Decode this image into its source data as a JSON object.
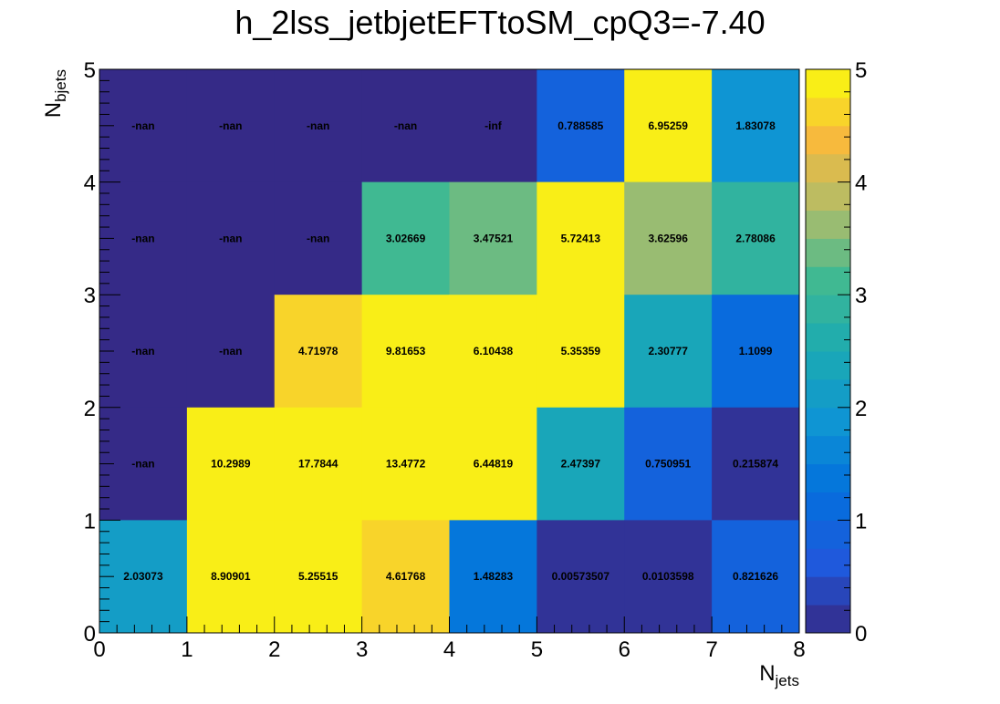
{
  "chart_data": {
    "type": "heatmap",
    "title": "h_2lss_jetbjetEFTtoSM_cpQ3=-7.40",
    "xlabel": "N",
    "xlabel_sub": "jets",
    "ylabel": "N",
    "ylabel_sub": "bjets",
    "xlim": [
      0,
      8
    ],
    "ylim": [
      0,
      5
    ],
    "zlim": [
      0,
      5
    ],
    "x_ticks": [
      "0",
      "1",
      "2",
      "3",
      "4",
      "5",
      "6",
      "7",
      "8"
    ],
    "y_ticks": [
      "0",
      "1",
      "2",
      "3",
      "4",
      "5"
    ],
    "z_ticks": [
      "0",
      "1",
      "2",
      "3",
      "4",
      "5"
    ],
    "colorbar_levels": 20,
    "underflow_color": "#352a87",
    "row_order": "top (y 4-5) to bottom (y 0-1)",
    "cells_text": [
      [
        "-nan",
        "-nan",
        "-nan",
        "-nan",
        "-inf",
        "0.788585",
        "6.95259",
        "1.83078"
      ],
      [
        "-nan",
        "-nan",
        "-nan",
        "3.02669",
        "3.47521",
        "5.72413",
        "3.62596",
        "2.78086"
      ],
      [
        "-nan",
        "-nan",
        "4.71978",
        "9.81653",
        "6.10438",
        "5.35359",
        "2.30777",
        "1.1099"
      ],
      [
        "-nan",
        "10.2989",
        "17.7844",
        "13.4772",
        "6.44819",
        "2.47397",
        "0.750951",
        "0.215874"
      ],
      [
        "2.03073",
        "8.90901",
        "5.25515",
        "4.61768",
        "1.48283",
        "0.00573507",
        "0.0103598",
        "0.821626"
      ]
    ]
  }
}
